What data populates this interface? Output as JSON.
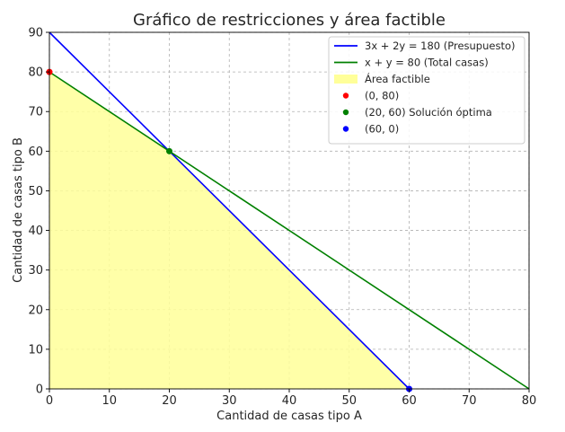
{
  "chart_data": {
    "type": "line",
    "title": "Gráfico de restricciones y área factible",
    "xlabel": "Cantidad de casas tipo A",
    "ylabel": "Cantidad de casas tipo B",
    "xlim": [
      0,
      80
    ],
    "ylim": [
      0,
      90
    ],
    "xticks": [
      "0",
      "10",
      "20",
      "30",
      "40",
      "50",
      "60",
      "70",
      "80"
    ],
    "yticks": [
      "0",
      "10",
      "20",
      "30",
      "40",
      "50",
      "60",
      "70",
      "80",
      "90"
    ],
    "grid": true,
    "legend_position": "top-right",
    "series": [
      {
        "name": "3x + 2y = 180 (Presupuesto)",
        "kind": "line",
        "color": "#0000ff",
        "points": [
          [
            0,
            90
          ],
          [
            60,
            0
          ]
        ]
      },
      {
        "name": "x + y = 80 (Total casas)",
        "kind": "line",
        "color": "#008000",
        "points": [
          [
            0,
            80
          ],
          [
            80,
            0
          ]
        ]
      }
    ],
    "area": {
      "name": "Área factible",
      "color": "#ffff99",
      "points": [
        [
          0,
          0
        ],
        [
          0,
          80
        ],
        [
          20,
          60
        ],
        [
          60,
          0
        ]
      ]
    },
    "markers": [
      {
        "name": "(0, 80)",
        "color": "#ff0000",
        "x": 0,
        "y": 80
      },
      {
        "name": "(20, 60) Solución óptima",
        "color": "#008000",
        "x": 20,
        "y": 60
      },
      {
        "name": "(60, 0)",
        "color": "#0000ff",
        "x": 60,
        "y": 0
      }
    ]
  }
}
